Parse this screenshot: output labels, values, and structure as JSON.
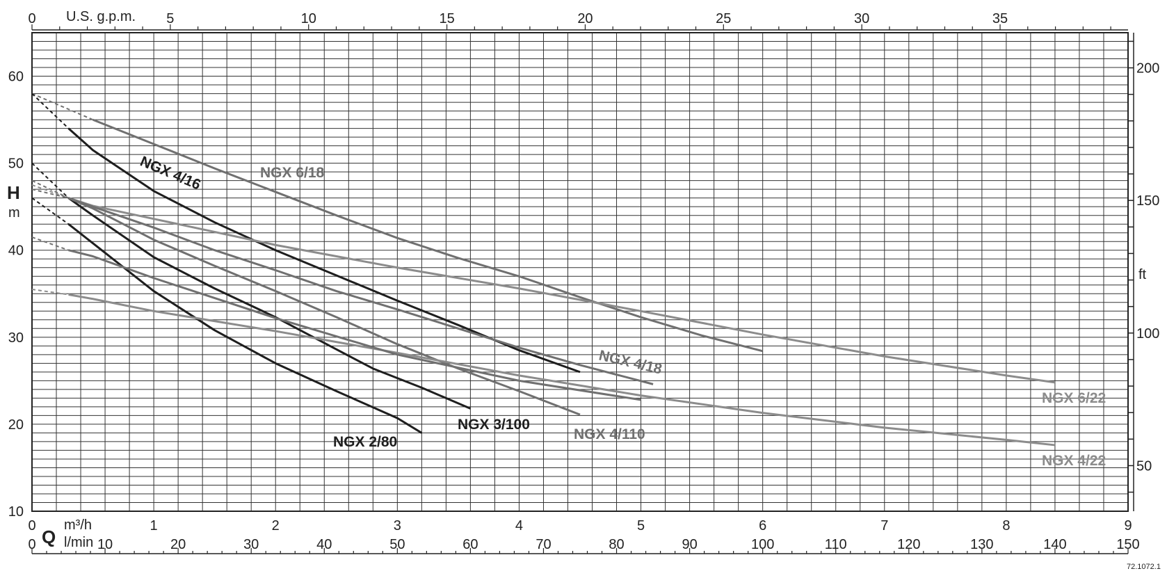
{
  "chart_data": {
    "type": "line",
    "title": "",
    "x_unit_primary": "m³/h",
    "x_unit_secondary": "l/min",
    "x_unit_top": "U.S. g.p.m.",
    "x_label": "Q",
    "y_label": "H",
    "y_unit": "m",
    "y_unit_right": "ft",
    "xlim": [
      0,
      9
    ],
    "ylim": [
      10,
      65
    ],
    "grid": true,
    "x_ticks_m3h": [
      "0",
      "1",
      "2",
      "3",
      "4",
      "5",
      "6",
      "7",
      "8",
      "9"
    ],
    "x_ticks_lmin": [
      "0",
      "10",
      "20",
      "30",
      "40",
      "50",
      "60",
      "70",
      "80",
      "90",
      "100",
      "110",
      "120",
      "130",
      "140",
      "150"
    ],
    "x_ticks_gpm": [
      "0",
      "5",
      "10",
      "15",
      "20",
      "25",
      "30",
      "35"
    ],
    "y_ticks_m": [
      "10",
      "20",
      "30",
      "40",
      "50",
      "60"
    ],
    "y_ticks_ft": [
      "50",
      "100",
      "150",
      "200"
    ],
    "series": [
      {
        "name": "NGX 6/18",
        "color": "#707070",
        "x": [
          0,
          0.5,
          1,
          1.5,
          2,
          2.5,
          3,
          3.5,
          4,
          4.5,
          5,
          5.5,
          6
        ],
        "y": [
          58.0,
          55.0,
          52.2,
          49.4,
          46.7,
          44.0,
          41.4,
          39.1,
          37.0,
          34.6,
          32.3,
          30.2,
          28.4
        ]
      },
      {
        "name": "NGX 4/16",
        "color": "#1e1e1e",
        "x": [
          0,
          0.3,
          0.5,
          1,
          1.5,
          2,
          2.5,
          3,
          3.5,
          4,
          4.5
        ],
        "y": [
          58.0,
          54.0,
          51.5,
          46.8,
          43.2,
          40.0,
          37.1,
          34.2,
          31.4,
          28.5,
          26.0
        ]
      },
      {
        "name": "NGX 6/22",
        "color": "#8c8c8c",
        "x": [
          0,
          0.3,
          0.5,
          1,
          2,
          3,
          4,
          5,
          6,
          7,
          8,
          8.4
        ],
        "y": [
          47.5,
          46.0,
          45.1,
          43.6,
          40.6,
          38.0,
          35.6,
          33.0,
          30.3,
          27.8,
          25.6,
          24.8
        ]
      },
      {
        "name": "NGX 4/18",
        "color": "#707070",
        "x": [
          0,
          0.3,
          0.5,
          1,
          1.5,
          2,
          2.5,
          3,
          3.5,
          4,
          4.5,
          5.1
        ],
        "y": [
          48.0,
          46.0,
          45.0,
          42.6,
          40.0,
          37.7,
          35.3,
          33.2,
          31.0,
          28.8,
          26.8,
          24.6
        ]
      },
      {
        "name": "NGX 3/100",
        "color": "#1e1e1e",
        "x": [
          0,
          0.3,
          0.5,
          1,
          1.5,
          2,
          2.5,
          2.8,
          3.2,
          3.6
        ],
        "y": [
          50.0,
          46.0,
          44.0,
          39.2,
          35.6,
          32.3,
          28.6,
          26.4,
          24.2,
          21.8
        ]
      },
      {
        "name": "NGX 4/110",
        "color": "#707070",
        "x": [
          0,
          0.3,
          0.5,
          1,
          1.5,
          2,
          2.5,
          3,
          3.5,
          4,
          4.5
        ],
        "y": [
          47.0,
          46.0,
          44.8,
          41.2,
          38.2,
          35.3,
          32.3,
          29.2,
          26.4,
          23.8,
          21.1
        ]
      },
      {
        "name": "NGX 2/80",
        "color": "#1e1e1e",
        "x": [
          0,
          0.3,
          0.5,
          1,
          1.5,
          2,
          2.5,
          3,
          3.2
        ],
        "y": [
          46.0,
          43.0,
          40.8,
          35.3,
          30.8,
          27.0,
          23.8,
          20.7,
          19.0
        ]
      },
      {
        "name": "NGX 4/22",
        "color": "#8c8c8c",
        "x": [
          0,
          0.3,
          0.5,
          1,
          2,
          3,
          4,
          5,
          6,
          7,
          8,
          8.4
        ],
        "y": [
          35.5,
          34.9,
          34.4,
          33.0,
          30.7,
          28.2,
          25.6,
          23.3,
          21.3,
          19.6,
          18.2,
          17.6
        ]
      },
      {
        "name": "",
        "color": "#707070",
        "x": [
          0,
          0.3,
          0.5,
          1,
          2,
          3,
          4,
          5
        ],
        "y": [
          41.5,
          40.0,
          39.3,
          36.8,
          32.2,
          28.0,
          25.0,
          22.8
        ]
      }
    ]
  },
  "labels": {
    "ngx_6_18": "NGX 6/18",
    "ngx_4_16": "NGX 4/16",
    "ngx_6_22": "NGX 6/22",
    "ngx_4_18": "NGX 4/18",
    "ngx_3_100": "NGX 3/100",
    "ngx_4_110": "NGX 4/110",
    "ngx_2_80": "NGX 2/80",
    "ngx_4_22": "NGX 4/22"
  },
  "footer": {
    "code": "72.1072.1"
  }
}
